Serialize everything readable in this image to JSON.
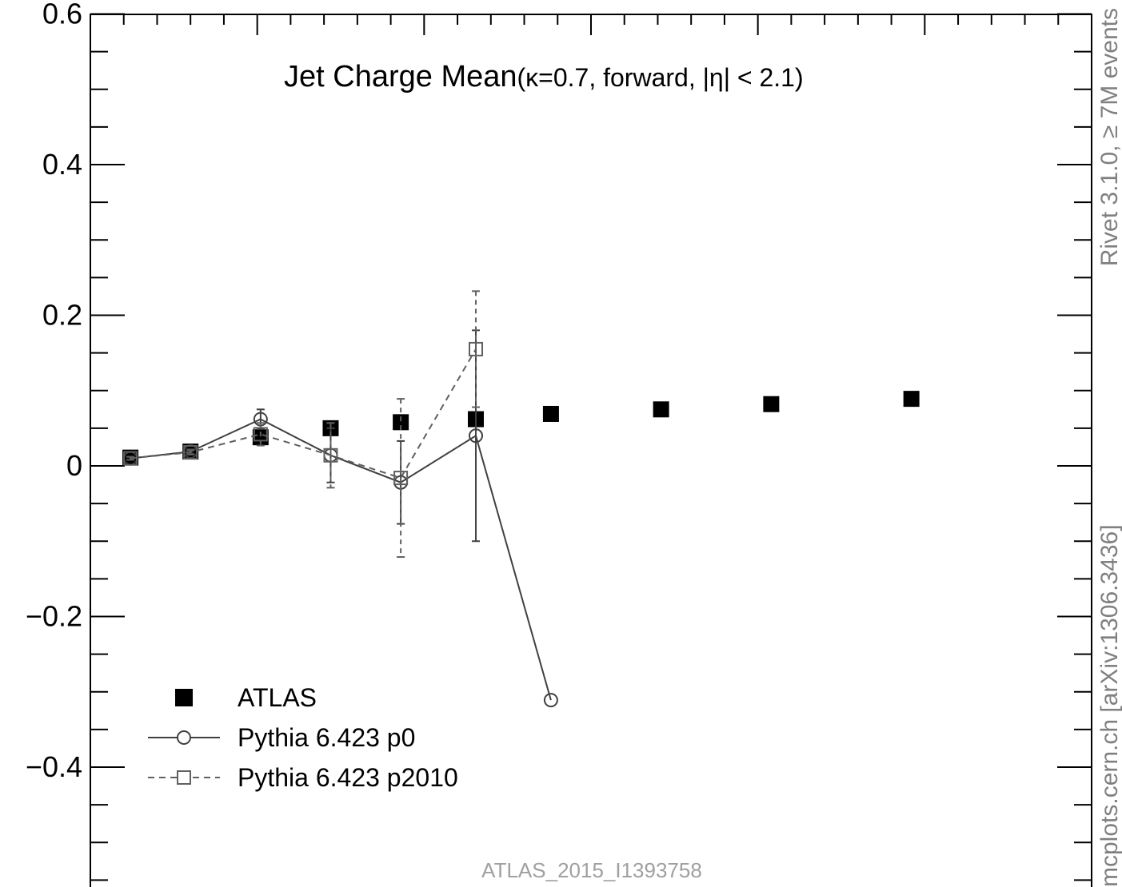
{
  "chart_data": {
    "type": "scatter",
    "title": "Jet Charge Mean",
    "title_params": "(κ=0.7, forward, |η| < 2.1)",
    "xlabel": "",
    "ylabel": "",
    "x_range": [
      0,
      1000
    ],
    "ylim": [
      -0.55,
      0.6
    ],
    "grid": false,
    "legend_position": "bottom-left",
    "y_ticks": [
      {
        "value": 0.6,
        "label": "0.6"
      },
      {
        "value": 0.4,
        "label": "0.4"
      },
      {
        "value": 0.2,
        "label": "0.2"
      },
      {
        "value": 0,
        "label": "0"
      },
      {
        "value": -0.2,
        "label": "−0.2"
      },
      {
        "value": -0.4,
        "label": "−0.4"
      }
    ],
    "series": [
      {
        "name": "ATLAS",
        "style": "marker",
        "marker": "filled-square",
        "color": "#000000",
        "points": [
          {
            "x": 40,
            "y": 0.011
          },
          {
            "x": 100,
            "y": 0.019
          },
          {
            "x": 170,
            "y": 0.038
          },
          {
            "x": 240,
            "y": 0.05
          },
          {
            "x": 310,
            "y": 0.058
          },
          {
            "x": 385,
            "y": 0.062
          },
          {
            "x": 460,
            "y": 0.069
          },
          {
            "x": 570,
            "y": 0.075
          },
          {
            "x": 680,
            "y": 0.082
          },
          {
            "x": 820,
            "y": 0.089
          }
        ]
      },
      {
        "name": "Pythia 6.423 p0",
        "style": "solid",
        "marker": "open-circle",
        "color": "#404040",
        "points": [
          {
            "x": 40,
            "y": 0.01,
            "err": 0.002
          },
          {
            "x": 100,
            "y": 0.019,
            "err": 0.003
          },
          {
            "x": 170,
            "y": 0.062,
            "err": 0.013
          },
          {
            "x": 240,
            "y": 0.014,
            "err": 0.036
          },
          {
            "x": 310,
            "y": -0.022,
            "err": 0.055
          },
          {
            "x": 385,
            "y": 0.04,
            "err": 0.14
          },
          {
            "x": 460,
            "y": -0.311,
            "err": 0.0
          }
        ]
      },
      {
        "name": "Pythia 6.423 p2010",
        "style": "dashed",
        "marker": "open-square",
        "color": "#606060",
        "points": [
          {
            "x": 40,
            "y": 0.01,
            "err": 0.002
          },
          {
            "x": 100,
            "y": 0.018,
            "err": 0.003
          },
          {
            "x": 170,
            "y": 0.042,
            "err": 0.015
          },
          {
            "x": 240,
            "y": 0.014,
            "err": 0.043
          },
          {
            "x": 310,
            "y": -0.016,
            "err": 0.105
          },
          {
            "x": 385,
            "y": 0.155,
            "err": 0.077
          }
        ]
      }
    ],
    "right_annotation_top": "Rivet 3.1.0, ≥ 7M events",
    "right_annotation_bottom": "mcplots.cern.ch [arXiv:1306.3436]",
    "analysis_id": "ATLAS_2015_I1393758"
  }
}
